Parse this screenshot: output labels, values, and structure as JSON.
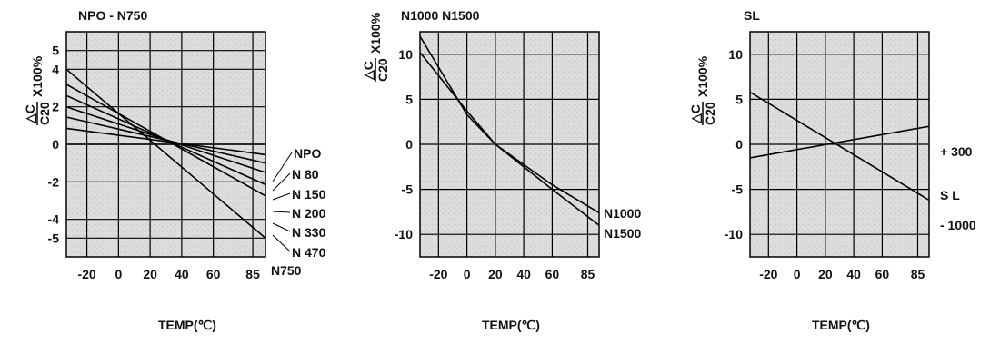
{
  "chart_data": [
    {
      "type": "line",
      "title": "NPO - N750",
      "ylabel_top": "△C",
      "ylabel_bottom": "C20",
      "ylabel_suffix": "X100%",
      "xlabel": "TEMP(℃)",
      "xlim": [
        -33,
        93
      ],
      "ylim": [
        -6,
        6
      ],
      "xticks": [
        -20,
        0,
        20,
        40,
        60,
        85
      ],
      "yticks": [
        5,
        4,
        2,
        0,
        -2,
        -4,
        -5
      ],
      "grid": true,
      "series": [
        {
          "name": "NPO",
          "x": [
            -33,
            93
          ],
          "y": [
            0,
            0
          ]
        },
        {
          "name": "N 80",
          "x": [
            -33,
            93
          ],
          "y": [
            0.85,
            -0.55
          ]
        },
        {
          "name": "N 150",
          "x": [
            -33,
            93
          ],
          "y": [
            1.45,
            -1.0
          ]
        },
        {
          "name": "N 200",
          "x": [
            -33,
            93
          ],
          "y": [
            2.0,
            -1.5
          ]
        },
        {
          "name": "N 330",
          "x": [
            -33,
            93
          ],
          "y": [
            2.6,
            -2.15
          ]
        },
        {
          "name": "N 470",
          "x": [
            -33,
            93
          ],
          "y": [
            3.2,
            -2.75
          ]
        },
        {
          "name": "N750",
          "x": [
            -33,
            93
          ],
          "y": [
            4.0,
            -5.0
          ]
        }
      ]
    },
    {
      "type": "line",
      "title": "N1000 N1500",
      "ylabel_top": "△C",
      "ylabel_bottom": "C20",
      "ylabel_suffix": "X100%",
      "xlabel": "TEMP(℃)",
      "xlim": [
        -33,
        93
      ],
      "ylim": [
        -12.5,
        12.5
      ],
      "xticks": [
        -20,
        0,
        20,
        40,
        60,
        85
      ],
      "yticks": [
        10,
        5,
        0,
        -5,
        -10
      ],
      "grid": true,
      "series": [
        {
          "name": "N1000",
          "x": [
            -33,
            0,
            20,
            60,
            93
          ],
          "y": [
            10.2,
            3.7,
            0,
            -4.5,
            -7.6
          ]
        },
        {
          "name": "N1500",
          "x": [
            -33,
            0,
            20,
            60,
            93
          ],
          "y": [
            12.0,
            3.3,
            0,
            -5.0,
            -9.0
          ]
        }
      ]
    },
    {
      "type": "line",
      "title": "SL",
      "ylabel_top": "△C",
      "ylabel_bottom": "C20",
      "ylabel_suffix": "X100%",
      "xlabel": "TEMP(℃)",
      "xlim": [
        -33,
        93
      ],
      "ylim": [
        -12.5,
        12.5
      ],
      "xticks": [
        -20,
        0,
        20,
        40,
        60,
        85
      ],
      "yticks": [
        10,
        5,
        0,
        -5,
        -10
      ],
      "grid": true,
      "series": [
        {
          "name": "+ 300",
          "x": [
            -33,
            93
          ],
          "y": [
            -1.5,
            2.0
          ]
        },
        {
          "name": "- 1000",
          "x": [
            -33,
            93
          ],
          "y": [
            5.8,
            -6.2
          ]
        }
      ],
      "annotations": [
        "S L"
      ]
    }
  ]
}
